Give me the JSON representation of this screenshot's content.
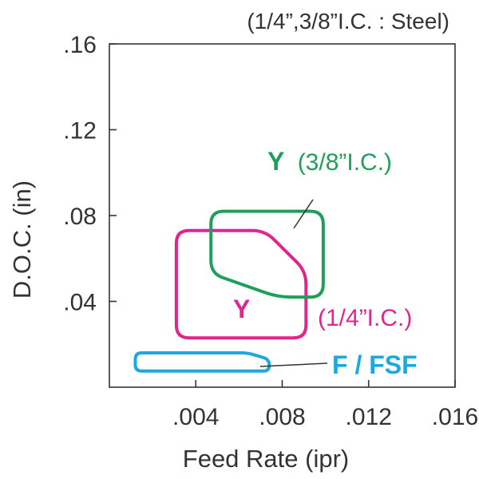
{
  "chart_data": {
    "type": "area",
    "title": "(1/4”,3/8”I.C. : Steel)",
    "xlabel": "Feed Rate (ipr)",
    "ylabel": "D.O.C. (in)",
    "xlim": [
      0,
      0.016
    ],
    "ylim": [
      0,
      0.16
    ],
    "x_ticks": [
      {
        "value": 0.004,
        "label": ".004"
      },
      {
        "value": 0.008,
        "label": ".008"
      },
      {
        "value": 0.012,
        "label": ".012"
      },
      {
        "value": 0.016,
        "label": ".016"
      }
    ],
    "y_ticks": [
      {
        "value": 0.04,
        "label": ".04"
      },
      {
        "value": 0.08,
        "label": ".08"
      },
      {
        "value": 0.12,
        "label": ".12"
      },
      {
        "value": 0.16,
        "label": ".16"
      }
    ],
    "grid": false,
    "regions": [
      {
        "id": "y-quarter",
        "grade": "Y",
        "note": "(1/4”I.C.)",
        "color": "#e0258e",
        "points": [
          [
            0.0031,
            0.073
          ],
          [
            0.0072,
            0.073
          ],
          [
            0.0091,
            0.054
          ],
          [
            0.0091,
            0.023
          ],
          [
            0.0031,
            0.023
          ]
        ]
      },
      {
        "id": "y-three-eighths",
        "grade": "Y",
        "note": "(3/8”I.C.)",
        "color": "#1ea05a",
        "points": [
          [
            0.0047,
            0.082
          ],
          [
            0.0099,
            0.082
          ],
          [
            0.0099,
            0.042
          ],
          [
            0.0078,
            0.042
          ],
          [
            0.0047,
            0.053
          ]
        ]
      },
      {
        "id": "f-fsf",
        "grade": "F / FSF",
        "note": "",
        "color": "#1ea8e0",
        "points": [
          [
            0.0012,
            0.016
          ],
          [
            0.0064,
            0.016
          ],
          [
            0.0074,
            0.013
          ],
          [
            0.0074,
            0.0075
          ],
          [
            0.0012,
            0.0075
          ]
        ]
      }
    ]
  }
}
